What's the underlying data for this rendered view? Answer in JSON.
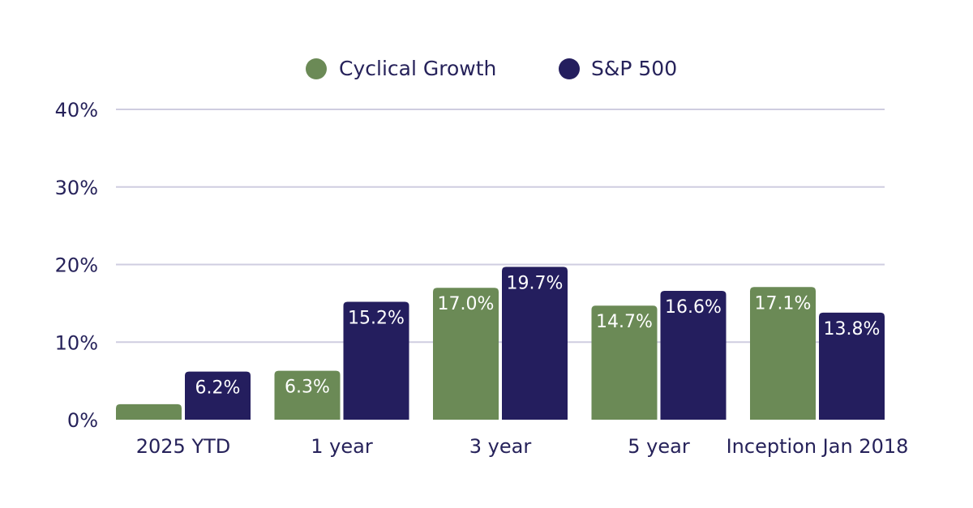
{
  "chart_data": {
    "type": "bar",
    "title": "",
    "xlabel": "",
    "ylabel": "",
    "categories": [
      "2025 YTD",
      "1 year",
      "3 year",
      "5 year",
      "Inception Jan 2018"
    ],
    "series": [
      {
        "name": "Cyclical Growth",
        "color": "#6b8a56",
        "values": [
          2.0,
          6.3,
          17.0,
          14.7,
          17.1
        ],
        "labels": [
          "",
          "6.3%",
          "17.0%",
          "14.7%",
          "17.1%"
        ]
      },
      {
        "name": "S&P 500",
        "color": "#241e5e",
        "values": [
          6.2,
          15.2,
          19.7,
          16.6,
          13.8
        ],
        "labels": [
          "6.2%",
          "15.2%",
          "19.7%",
          "16.6%",
          "13.8%"
        ]
      }
    ],
    "ylim": [
      0,
      40
    ],
    "yticks": [
      0,
      10,
      20,
      30,
      40
    ],
    "ytick_labels": [
      "0%",
      "10%",
      "20%",
      "30%",
      "40%"
    ],
    "grid": true,
    "legend_position": "top-center"
  }
}
